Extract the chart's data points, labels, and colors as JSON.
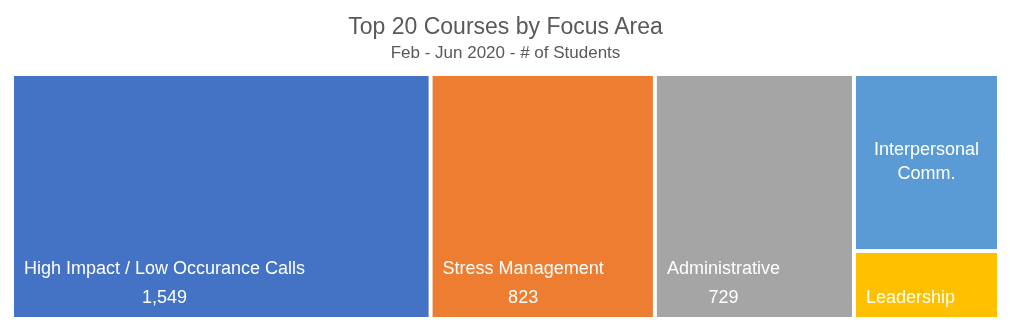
{
  "chart_data": {
    "type": "other",
    "title": "Top 20 Courses by Focus Area",
    "subtitle": "Feb - Jun 2020 - # of Students",
    "categories": [
      "High Impact / Low Occurance Calls",
      "Stress Management",
      "Administrative",
      "Interpersonal Comm.",
      "Leadership"
    ],
    "values": [
      1549,
      823,
      729,
      null,
      null
    ],
    "colors": [
      "#4472c4",
      "#ed7d31",
      "#a5a5a5",
      "#5b9bd5",
      "#ffc000"
    ],
    "value_labels": [
      "1,549",
      "823",
      "729",
      null,
      null
    ]
  }
}
